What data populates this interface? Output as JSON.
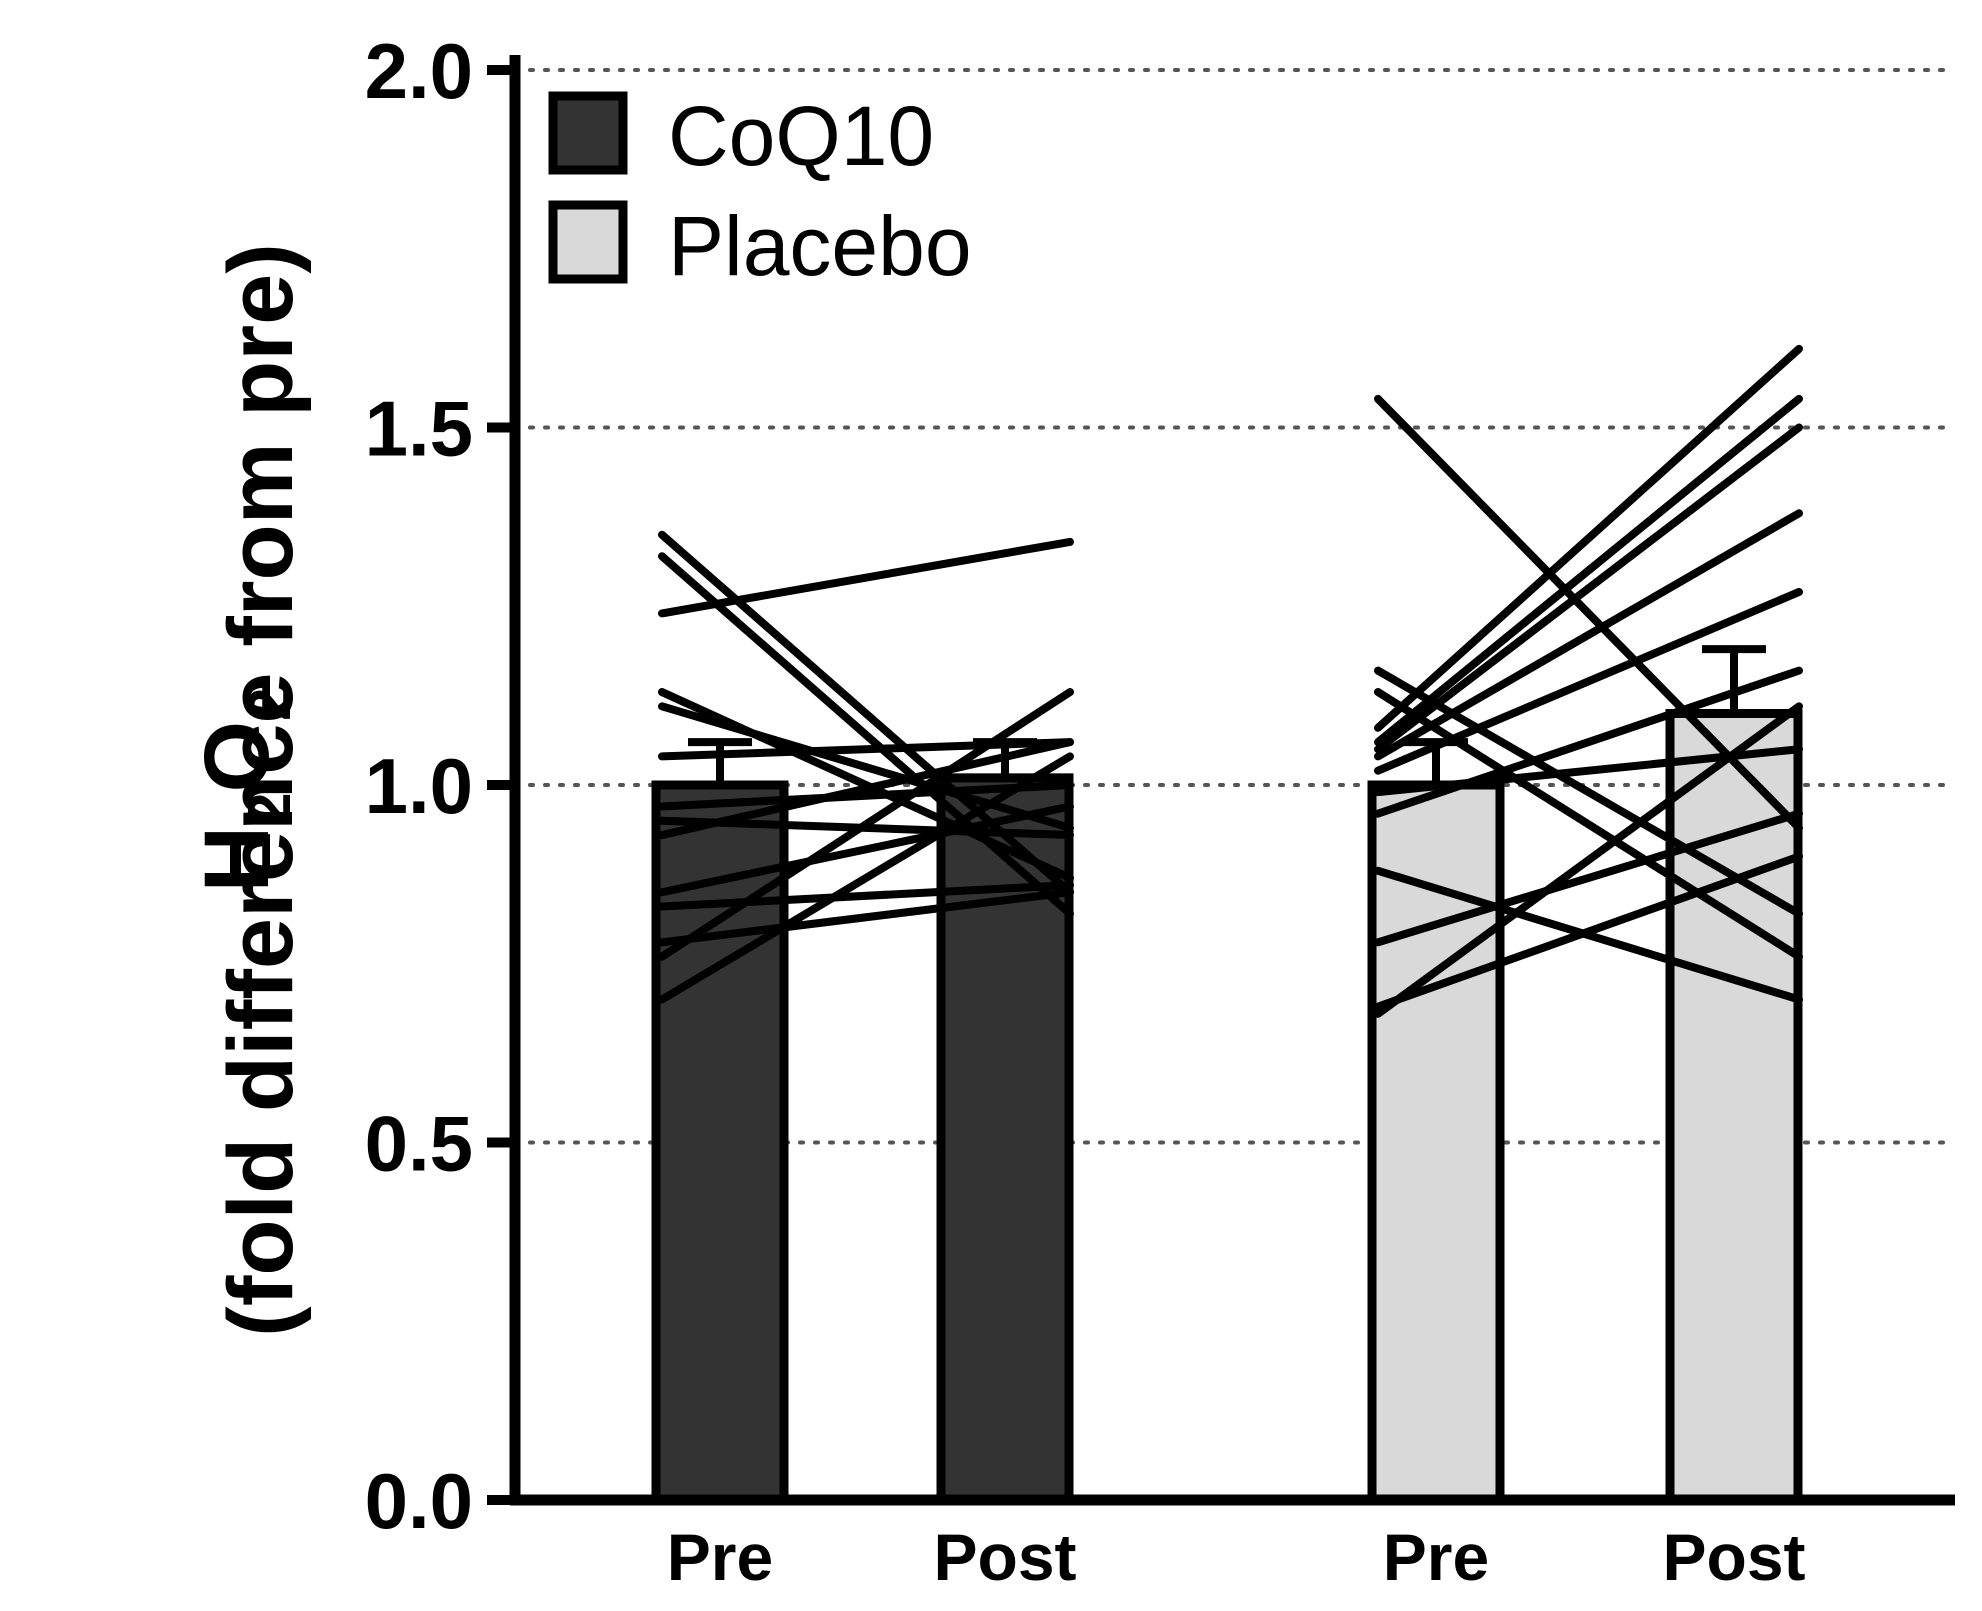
{
  "chart_data": {
    "type": "bar",
    "title": "",
    "xlabel": "",
    "ylabel": {
      "chemical": "H2O2",
      "main_prefix": "H",
      "sub1": "2",
      "main_mid": "O",
      "sub2": "2",
      "line2": "(fold difference from pre)"
    },
    "ylim": [
      0,
      2.0
    ],
    "yticks": [
      "0.0",
      "0.5",
      "1.0",
      "1.5",
      "2.0"
    ],
    "grid": "dotted-horizontal",
    "legend": {
      "placement": "top-left",
      "entries": [
        {
          "label": "CoQ10",
          "color": "#333333"
        },
        {
          "label": "Placebo",
          "color": "#d9d9d9"
        }
      ]
    },
    "groups": [
      {
        "name": "CoQ10",
        "color": "#333333",
        "bars": [
          {
            "label": "Pre",
            "value": 1.0,
            "error": 0.06
          },
          {
            "label": "Post",
            "value": 1.01,
            "error": 0.05
          }
        ],
        "individual_lines": [
          [
            1.35,
            0.85
          ],
          [
            1.32,
            0.82
          ],
          [
            1.24,
            1.34
          ],
          [
            1.13,
            0.87
          ],
          [
            1.11,
            0.94
          ],
          [
            1.04,
            1.06
          ],
          [
            0.97,
            1.0
          ],
          [
            0.95,
            0.93
          ],
          [
            0.93,
            1.06
          ],
          [
            0.85,
            0.97
          ],
          [
            0.83,
            0.86
          ],
          [
            0.78,
            0.85
          ],
          [
            0.76,
            1.13
          ],
          [
            0.7,
            1.04
          ]
        ]
      },
      {
        "name": "Placebo",
        "color": "#d9d9d9",
        "bars": [
          {
            "label": "Pre",
            "value": 1.0,
            "error": 0.06
          },
          {
            "label": "Post",
            "value": 1.1,
            "error": 0.09
          }
        ],
        "individual_lines": [
          [
            1.54,
            0.94
          ],
          [
            1.16,
            0.82
          ],
          [
            1.13,
            0.76
          ],
          [
            1.08,
            1.61
          ],
          [
            1.06,
            1.54
          ],
          [
            1.05,
            1.5
          ],
          [
            1.04,
            1.38
          ],
          [
            1.02,
            1.27
          ],
          [
            0.99,
            1.05
          ],
          [
            0.96,
            1.16
          ],
          [
            0.88,
            0.7
          ],
          [
            0.78,
            0.96
          ],
          [
            0.69,
            0.9
          ],
          [
            0.68,
            1.11
          ]
        ]
      }
    ]
  }
}
